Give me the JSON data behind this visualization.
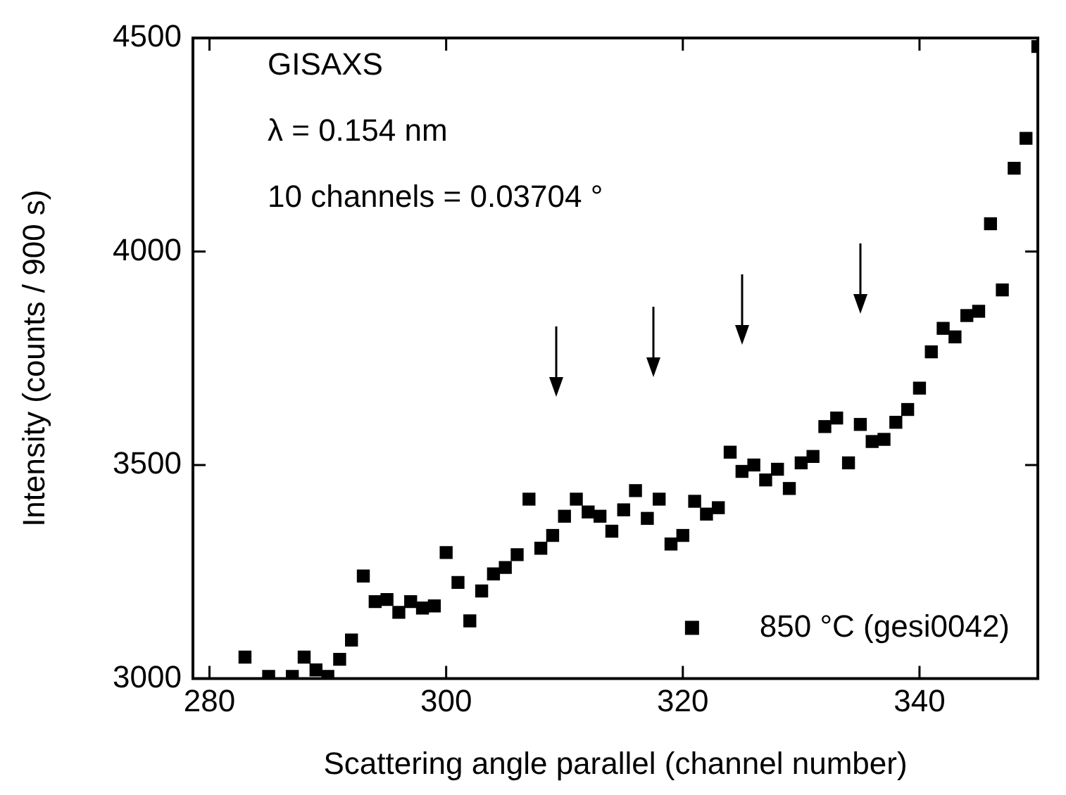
{
  "chart_data": {
    "type": "scatter",
    "xlabel": "Scattering angle parallel (channel number)",
    "ylabel": "Intensity (counts / 900 s)",
    "annotations": [
      "GISAXS",
      "λ = 0.154 nm",
      "10 channels = 0.03704 °"
    ],
    "x": [
      283,
      285,
      287,
      288,
      289,
      290,
      291,
      292,
      293,
      294,
      295,
      296,
      297,
      298,
      299,
      300,
      301,
      302,
      303,
      304,
      305,
      306,
      307,
      308,
      309,
      310,
      311,
      312,
      313,
      314,
      315,
      316,
      317,
      318,
      319,
      320,
      321,
      322,
      323,
      324,
      325,
      326,
      327,
      328,
      329,
      330,
      331,
      332,
      333,
      334,
      335,
      336,
      337,
      338,
      339,
      340,
      341,
      342,
      343,
      344,
      345,
      346,
      347,
      348,
      349,
      350
    ],
    "series": [
      {
        "name": "850 °C (gesi0042)",
        "color": "#000000",
        "values": [
          3050,
          3005,
          3005,
          3050,
          3020,
          3005,
          3045,
          3090,
          3240,
          3180,
          3185,
          3155,
          3180,
          3165,
          3170,
          3295,
          3225,
          3135,
          3205,
          3245,
          3260,
          3290,
          3420,
          3305,
          3335,
          3380,
          3420,
          3390,
          3380,
          3345,
          3395,
          3440,
          3375,
          3420,
          3315,
          3335,
          3415,
          3385,
          3400,
          3530,
          3485,
          3500,
          3465,
          3490,
          3445,
          3505,
          3520,
          3590,
          3610,
          3505,
          3595,
          3555,
          3560,
          3600,
          3630,
          3680,
          3765,
          3820,
          3800,
          3850,
          3860,
          4065,
          3910,
          4195,
          4265,
          4480
        ]
      }
    ],
    "xlim": [
      278.6,
      350
    ],
    "xticks": [
      280,
      300,
      320,
      340
    ],
    "ylim": [
      3000,
      4500
    ],
    "yticks": [
      3000,
      3500,
      4000,
      4500
    ],
    "marker": "square",
    "legend": "bottom right"
  }
}
